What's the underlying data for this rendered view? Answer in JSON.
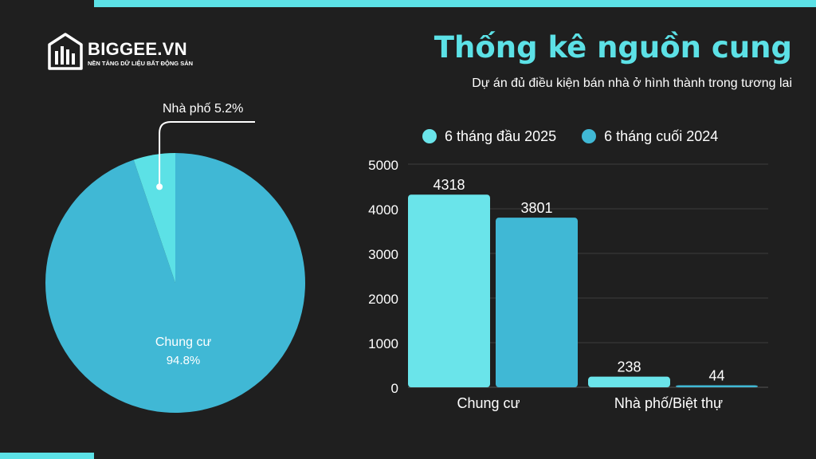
{
  "brand": {
    "name": "BIGGEE.VN",
    "tagline": "NỀN TẢNG DỮ LIỆU BẤT ĐỘNG SẢN"
  },
  "header": {
    "title": "Thống kê nguồn cung",
    "subtitle": "Dự án đủ điều kiện bán nhà ở hình thành trong tương lai"
  },
  "colors": {
    "accent": "#5ce1e6",
    "series_a": "#6ae4ea",
    "series_b": "#40b8d5",
    "background": "#1f1f1f"
  },
  "chart_data": [
    {
      "type": "pie",
      "slices": [
        {
          "label": "Chung cư",
          "value": 94.8,
          "value_label": "94.8%",
          "color": "#40b8d5"
        },
        {
          "label": "Nhà phố",
          "value": 5.2,
          "value_label": "5.2%",
          "color": "#5ce1e6"
        }
      ],
      "callout": "Nhà phố 5.2%"
    },
    {
      "type": "bar",
      "categories": [
        "Chung cư",
        "Nhà phố/Biệt thự"
      ],
      "series": [
        {
          "name": "6 tháng đầu 2025",
          "values": [
            4318,
            238
          ],
          "color": "#6ae4ea"
        },
        {
          "name": "6 tháng cuối 2024",
          "values": [
            3801,
            44
          ],
          "color": "#40b8d5"
        }
      ],
      "yticks": [
        0,
        1000,
        2000,
        3000,
        4000,
        5000
      ],
      "ylim": [
        0,
        5000
      ],
      "grid": true,
      "legend_position": "top"
    }
  ]
}
